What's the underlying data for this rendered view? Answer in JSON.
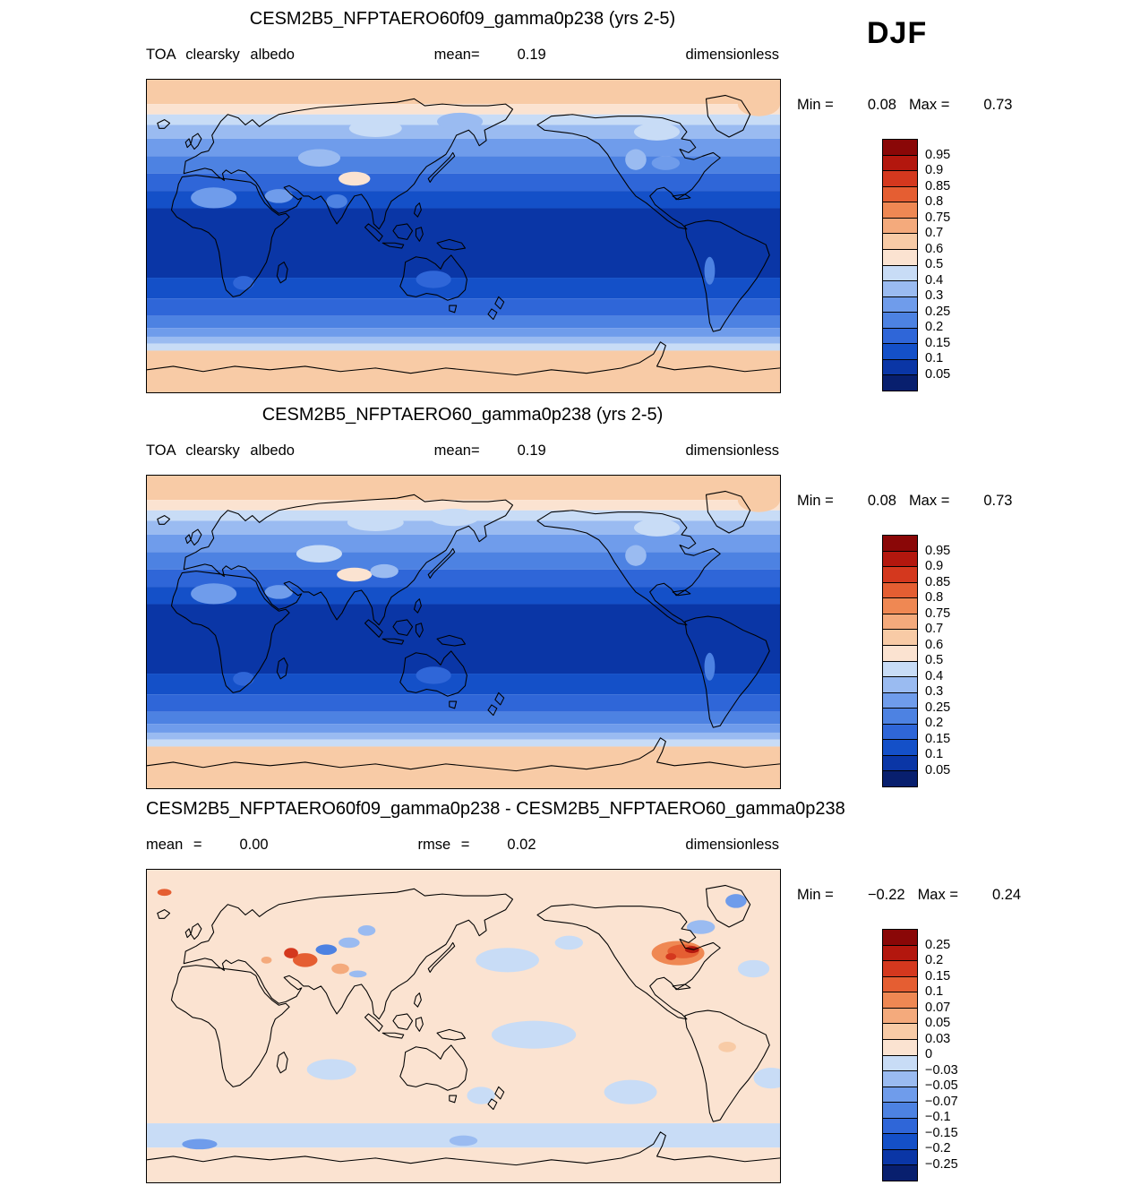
{
  "season_label": "DJF",
  "palette": {
    "colors_low_to_high": [
      "#081f6e",
      "#0a36a6",
      "#1450c8",
      "#2f66d8",
      "#4d82e2",
      "#6f9ceb",
      "#9abbf1",
      "#c8dcf6",
      "#fbe3d1",
      "#f8cba6",
      "#f4aa7c",
      "#ef8853",
      "#e55e32",
      "#d4381e",
      "#b3170e",
      "#8a0707"
    ]
  },
  "panels": [
    {
      "title": "CESM2B5_NFPTAERO60f09_gamma0p238 (yrs 2-5)",
      "left_label": "TOA clearsky albedo",
      "left_value": "",
      "center_label": "mean=",
      "center_value": "0.19",
      "units": "dimensionless",
      "min_label": "Min =",
      "min_value": "0.08",
      "max_label": "Max =",
      "max_value": "0.73",
      "colorbar_labels": [
        "0.95",
        "0.9",
        "0.85",
        "0.8",
        "0.75",
        "0.7",
        "0.6",
        "0.5",
        "0.4",
        "0.3",
        "0.25",
        "0.2",
        "0.15",
        "0.1",
        "0.05"
      ]
    },
    {
      "title": "CESM2B5_NFPTAERO60_gamma0p238 (yrs 2-5)",
      "left_label": "TOA clearsky albedo",
      "left_value": "",
      "center_label": "mean=",
      "center_value": "0.19",
      "units": "dimensionless",
      "min_label": "Min =",
      "min_value": "0.08",
      "max_label": "Max =",
      "max_value": "0.73",
      "colorbar_labels": [
        "0.95",
        "0.9",
        "0.85",
        "0.8",
        "0.75",
        "0.7",
        "0.6",
        "0.5",
        "0.4",
        "0.3",
        "0.25",
        "0.2",
        "0.15",
        "0.1",
        "0.05"
      ]
    },
    {
      "title": "CESM2B5_NFPTAERO60f09_gamma0p238 - CESM2B5_NFPTAERO60_gamma0p238",
      "left_label": "mean =",
      "left_value": "0.00",
      "center_label": "rmse =",
      "center_value": "0.02",
      "units": "dimensionless",
      "min_label": "Min =",
      "min_value": "−0.22",
      "max_label": "Max =",
      "max_value": "0.24",
      "colorbar_labels": [
        "0.25",
        "0.2",
        "0.15",
        "0.1",
        "0.07",
        "0.05",
        "0.03",
        "0",
        "−0.03",
        "−0.05",
        "−0.07",
        "−0.1",
        "−0.15",
        "−0.2",
        "−0.25"
      ]
    }
  ],
  "chart_data": [
    {
      "type": "heatmap",
      "projection": "equirectangular-global",
      "title": "CESM2B5_NFPTAERO60f09_gamma0p238 (yrs 2-5)",
      "variable": "TOA clearsky albedo",
      "units": "dimensionless",
      "season": "DJF",
      "mean": 0.19,
      "min": 0.08,
      "max": 0.73,
      "colorbar_position": "right",
      "levels": [
        0.05,
        0.1,
        0.15,
        0.2,
        0.25,
        0.3,
        0.4,
        0.5,
        0.6,
        0.7,
        0.75,
        0.8,
        0.85,
        0.9,
        0.95
      ],
      "zonal_bands": [
        [
          90,
          76,
          0.65
        ],
        [
          76,
          70,
          0.55
        ],
        [
          70,
          64,
          0.45
        ],
        [
          64,
          56,
          0.35
        ],
        [
          56,
          46,
          0.28
        ],
        [
          46,
          36,
          0.22
        ],
        [
          36,
          26,
          0.17
        ],
        [
          26,
          16,
          0.12
        ],
        [
          16,
          -24,
          0.08
        ],
        [
          -24,
          -36,
          0.12
        ],
        [
          -36,
          -46,
          0.17
        ],
        [
          -46,
          -53,
          0.22
        ],
        [
          -53,
          -58,
          0.28
        ],
        [
          -58,
          -62,
          0.38
        ],
        [
          -62,
          -66,
          0.45
        ],
        [
          -66,
          -90,
          0.65
        ]
      ],
      "anomaly_patches": [
        [
          -42,
          76,
          12,
          7,
          0.6
        ],
        [
          100,
          62,
          15,
          5,
          0.42
        ],
        [
          148,
          66,
          13,
          5,
          0.38
        ],
        [
          88,
          33,
          9,
          4,
          0.5
        ],
        [
          68,
          45,
          12,
          5,
          0.36
        ],
        [
          8,
          22,
          13,
          6,
          0.26
        ],
        [
          45,
          23,
          8,
          4,
          0.26
        ],
        [
          -100,
          60,
          13,
          5,
          0.4
        ],
        [
          -112,
          44,
          6,
          6,
          0.3
        ],
        [
          -95,
          42,
          8,
          4,
          0.28
        ],
        [
          -70,
          -20,
          3,
          8,
          0.2
        ],
        [
          133,
          -25,
          10,
          5,
          0.16
        ],
        [
          25,
          -27,
          6,
          4,
          0.15
        ],
        [
          78,
          20,
          6,
          4,
          0.2
        ]
      ]
    },
    {
      "type": "heatmap",
      "projection": "equirectangular-global",
      "title": "CESM2B5_NFPTAERO60_gamma0p238 (yrs 2-5)",
      "variable": "TOA clearsky albedo",
      "units": "dimensionless",
      "season": "DJF",
      "mean": 0.19,
      "min": 0.08,
      "max": 0.73,
      "colorbar_position": "right",
      "levels": [
        0.05,
        0.1,
        0.15,
        0.2,
        0.25,
        0.3,
        0.4,
        0.5,
        0.6,
        0.7,
        0.75,
        0.8,
        0.85,
        0.9,
        0.95
      ],
      "zonal_bands": [
        [
          90,
          76,
          0.65
        ],
        [
          76,
          70,
          0.55
        ],
        [
          70,
          64,
          0.45
        ],
        [
          64,
          56,
          0.35
        ],
        [
          56,
          46,
          0.28
        ],
        [
          46,
          36,
          0.22
        ],
        [
          36,
          26,
          0.17
        ],
        [
          26,
          16,
          0.12
        ],
        [
          16,
          -24,
          0.08
        ],
        [
          -24,
          -36,
          0.12
        ],
        [
          -36,
          -46,
          0.17
        ],
        [
          -46,
          -53,
          0.22
        ],
        [
          -53,
          -58,
          0.28
        ],
        [
          -58,
          -62,
          0.38
        ],
        [
          -62,
          -66,
          0.45
        ],
        [
          -66,
          -90,
          0.65
        ]
      ],
      "anomaly_patches": [
        [
          -42,
          76,
          12,
          7,
          0.6
        ],
        [
          100,
          63,
          16,
          5,
          0.45
        ],
        [
          145,
          66,
          14,
          5,
          0.4
        ],
        [
          88,
          33,
          10,
          4,
          0.5
        ],
        [
          68,
          45,
          13,
          5,
          0.4
        ],
        [
          8,
          22,
          13,
          6,
          0.26
        ],
        [
          45,
          23,
          8,
          4,
          0.26
        ],
        [
          -100,
          60,
          13,
          5,
          0.42
        ],
        [
          -112,
          44,
          6,
          6,
          0.32
        ],
        [
          -70,
          -20,
          3,
          8,
          0.2
        ],
        [
          133,
          -25,
          10,
          5,
          0.16
        ],
        [
          25,
          -27,
          6,
          4,
          0.15
        ],
        [
          105,
          35,
          8,
          4,
          0.3
        ]
      ]
    },
    {
      "type": "heatmap",
      "projection": "equirectangular-global",
      "title": "CESM2B5_NFPTAERO60f09_gamma0p238 - CESM2B5_NFPTAERO60_gamma0p238",
      "variable": "TOA clearsky albedo difference",
      "units": "dimensionless",
      "season": "DJF",
      "mean": 0.0,
      "rmse": 0.02,
      "min": -0.22,
      "max": 0.24,
      "colorbar_position": "right",
      "levels": [
        -0.25,
        -0.2,
        -0.15,
        -0.1,
        -0.07,
        -0.05,
        -0.03,
        0,
        0.03,
        0.05,
        0.07,
        0.1,
        0.15,
        0.2,
        0.25
      ],
      "zonal_bands": [
        [
          90,
          -56,
          0.01
        ],
        [
          -56,
          -70,
          -0.02
        ],
        [
          -70,
          -90,
          0.01
        ]
      ],
      "anomaly_patches": [
        [
          -88,
          42,
          15,
          7,
          0.08
        ],
        [
          -85,
          43,
          9,
          4,
          0.12
        ],
        [
          -80,
          44,
          4,
          2,
          0.22
        ],
        [
          -92,
          40,
          3,
          2,
          0.17
        ],
        [
          -75,
          57,
          8,
          4,
          -0.04
        ],
        [
          -55,
          72,
          6,
          4,
          -0.06
        ],
        [
          -20,
          77,
          4,
          2,
          0.12
        ],
        [
          60,
          38,
          7,
          4,
          0.12
        ],
        [
          52,
          42,
          4,
          3,
          0.17
        ],
        [
          72,
          44,
          6,
          3,
          -0.1
        ],
        [
          85,
          48,
          6,
          3,
          -0.05
        ],
        [
          95,
          55,
          5,
          3,
          -0.04
        ],
        [
          80,
          33,
          5,
          3,
          0.06
        ],
        [
          38,
          38,
          3,
          2,
          0.06
        ],
        [
          90,
          30,
          5,
          2,
          -0.05
        ],
        [
          175,
          38,
          18,
          7,
          -0.02
        ],
        [
          190,
          -5,
          24,
          8,
          -0.02
        ],
        [
          -115,
          -38,
          15,
          7,
          -0.02
        ],
        [
          -35,
          -30,
          10,
          6,
          -0.02
        ],
        [
          75,
          -25,
          14,
          6,
          -0.02
        ],
        [
          160,
          -40,
          8,
          5,
          -0.02
        ],
        [
          -45,
          33,
          9,
          5,
          -0.02
        ],
        [
          -150,
          48,
          8,
          4,
          -0.02
        ],
        [
          0,
          -68,
          10,
          3,
          -0.07
        ],
        [
          150,
          -66,
          8,
          3,
          -0.04
        ],
        [
          -60,
          -12,
          5,
          3,
          0.04
        ]
      ]
    }
  ]
}
